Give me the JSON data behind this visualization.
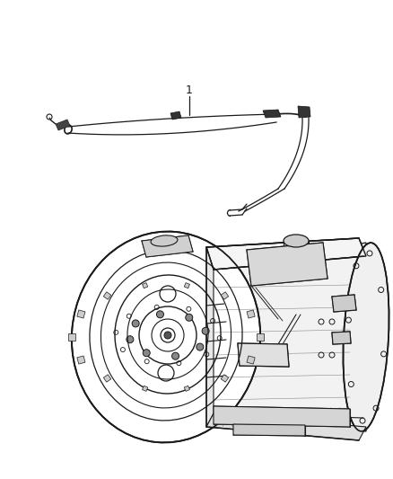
{
  "background_color": "#ffffff",
  "figure_width": 4.38,
  "figure_height": 5.33,
  "dpi": 100,
  "label_1_text": "1",
  "line_color": "#1a1a1a",
  "line_width": 0.9
}
